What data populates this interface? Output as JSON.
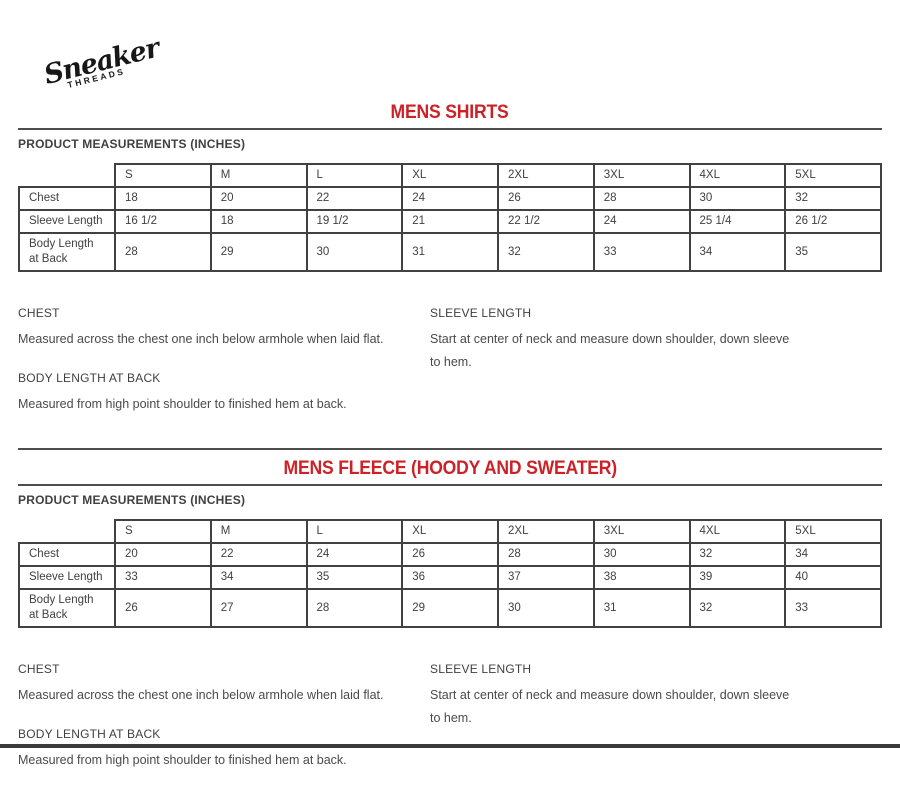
{
  "colors": {
    "accent_red": "#ce2127",
    "rule_gray": "#4d4d4d",
    "text_gray": "#414042",
    "bottom_bar": "#3a3a3a"
  },
  "logo": {
    "script": "Sneaker",
    "sub": "THREADS"
  },
  "sections": [
    {
      "title": "MENS SHIRTS",
      "measurements_label": "PRODUCT MEASUREMENTS (INCHES)",
      "table": {
        "columns": [
          "S",
          "M",
          "L",
          "XL",
          "2XL",
          "3XL",
          "4XL",
          "5XL"
        ],
        "rows": [
          {
            "label": "Chest",
            "values": [
              "18",
              "20",
              "22",
              "24",
              "26",
              "28",
              "30",
              "32"
            ]
          },
          {
            "label": "Sleeve Length",
            "values": [
              "16 1/2",
              "18",
              "19 1/2",
              "21",
              "22 1/2",
              "24",
              "25 1/4",
              "26 1/2"
            ]
          },
          {
            "label": "Body Length at Back",
            "values": [
              "28",
              "29",
              "30",
              "31",
              "32",
              "33",
              "34",
              "35"
            ]
          }
        ]
      },
      "notes": {
        "left": [
          {
            "heading": "CHEST",
            "body": "Measured across the chest one inch below armhole when laid flat."
          },
          {
            "heading": "BODY LENGTH AT BACK",
            "body": "Measured from high point shoulder to finished hem at back."
          }
        ],
        "right": [
          {
            "heading": "SLEEVE LENGTH",
            "body": "Start at center of neck and measure down shoulder, down sleeve to hem."
          }
        ]
      }
    },
    {
      "title": "MENS FLEECE (HOODY AND SWEATER)",
      "measurements_label": "PRODUCT MEASUREMENTS (INCHES)",
      "table": {
        "columns": [
          "S",
          "M",
          "L",
          "XL",
          "2XL",
          "3XL",
          "4XL",
          "5XL"
        ],
        "rows": [
          {
            "label": "Chest",
            "values": [
              "20",
              "22",
              "24",
              "26",
              "28",
              "30",
              "32",
              "34"
            ]
          },
          {
            "label": "Sleeve Length",
            "values": [
              "33",
              "34",
              "35",
              "36",
              "37",
              "38",
              "39",
              "40"
            ]
          },
          {
            "label": "Body Length at Back",
            "values": [
              "26",
              "27",
              "28",
              "29",
              "30",
              "31",
              "32",
              "33"
            ]
          }
        ]
      },
      "notes": {
        "left": [
          {
            "heading": "CHEST",
            "body": "Measured across the chest one inch below armhole when laid flat."
          },
          {
            "heading": "BODY LENGTH AT BACK",
            "body": "Measured from high point shoulder to finished hem at back."
          }
        ],
        "right": [
          {
            "heading": "SLEEVE LENGTH",
            "body": "Start at center of neck and measure down shoulder, down sleeve to hem."
          }
        ]
      }
    }
  ]
}
